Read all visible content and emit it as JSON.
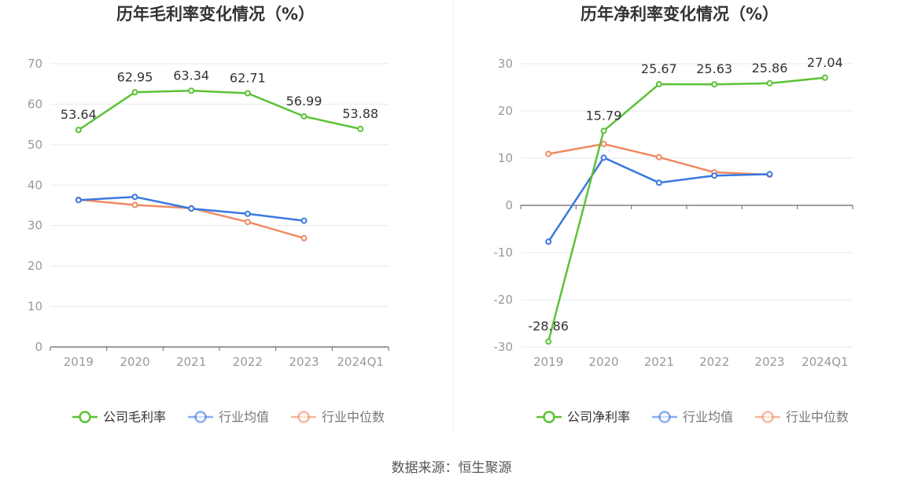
{
  "source_text": "数据来源：恒生聚源",
  "colors": {
    "company": "#5cc236",
    "industry_avg": "#3a78e0",
    "industry_median": "#f08a62",
    "grid": "#e6e8f0",
    "axis": "#666666",
    "tick_text": "#999999",
    "title_text": "#333333",
    "label_text": "#333333"
  },
  "chart_data": [
    {
      "type": "line",
      "title": "历年毛利率变化情况（%）",
      "categories": [
        "2019",
        "2020",
        "2021",
        "2022",
        "2023",
        "2024Q1"
      ],
      "ylim": [
        0,
        70
      ],
      "yticks": [
        0,
        10,
        20,
        30,
        40,
        50,
        60,
        70
      ],
      "grid": true,
      "legend_position": "bottom",
      "series": [
        {
          "name": "公司毛利率",
          "color_key": "company",
          "values": [
            53.64,
            62.95,
            63.34,
            62.71,
            56.99,
            53.88
          ],
          "labels": [
            "53.64",
            "62.95",
            "63.34",
            "62.71",
            "56.99",
            "53.88"
          ]
        },
        {
          "name": "行业均值",
          "color_key": "industry_avg",
          "values": [
            36.3,
            37.1,
            34.2,
            32.9,
            31.2,
            null
          ]
        },
        {
          "name": "行业中位数",
          "color_key": "industry_median",
          "values": [
            36.4,
            35.1,
            34.3,
            30.9,
            26.9,
            null
          ]
        }
      ]
    },
    {
      "type": "line",
      "title": "历年净利率变化情况（%）",
      "categories": [
        "2019",
        "2020",
        "2021",
        "2022",
        "2023",
        "2024Q1"
      ],
      "ylim": [
        -30,
        30
      ],
      "yticks": [
        -30,
        -20,
        -10,
        0,
        10,
        20,
        30
      ],
      "grid": true,
      "legend_position": "bottom",
      "series": [
        {
          "name": "公司净利率",
          "color_key": "company",
          "values": [
            -28.86,
            15.79,
            25.67,
            25.63,
            25.86,
            27.04
          ],
          "labels": [
            "-28.86",
            "15.79",
            "25.67",
            "25.63",
            "25.86",
            "27.04"
          ]
        },
        {
          "name": "行业均值",
          "color_key": "industry_avg",
          "values": [
            -7.7,
            10.1,
            4.8,
            6.3,
            6.6,
            null
          ]
        },
        {
          "name": "行业中位数",
          "color_key": "industry_median",
          "values": [
            10.9,
            13.0,
            10.2,
            7.0,
            6.5,
            null
          ]
        }
      ]
    }
  ]
}
